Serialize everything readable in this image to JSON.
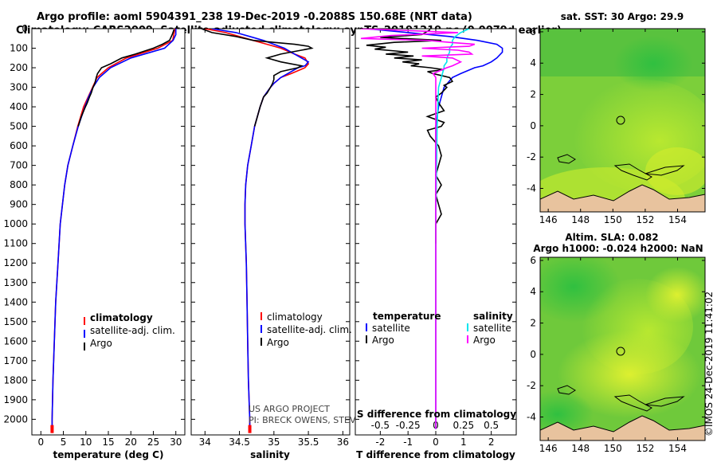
{
  "header": {
    "line1": "Argo profile: aoml 5904391_238 19-Dec-2019 -0.2088S 150.68E (NRT data)",
    "line2": "Climatology: CARS2009. Satellite-adjusted climatology: synTS_20191219.nc (0.0079d earlier)"
  },
  "colors": {
    "climatology": "#ff0000",
    "satellite": "#0000ff",
    "argo": "#000000",
    "salinity_satellite": "#00e5ee",
    "salinity_argo": "#ff00ff"
  },
  "depth_ticks": [
    "0",
    "100",
    "200",
    "300",
    "400",
    "500",
    "600",
    "700",
    "800",
    "900",
    "1000",
    "1100",
    "1200",
    "1300",
    "1400",
    "1500",
    "1600",
    "1700",
    "1800",
    "1900",
    "2000"
  ],
  "chart_data": [
    {
      "type": "line",
      "title": "",
      "xlabel": "temperature (deg C)",
      "ylabel": "",
      "xlim": [
        -2,
        32
      ],
      "ylim": [
        2080,
        0
      ],
      "xticks": [
        "0",
        "5",
        "10",
        "15",
        "20",
        "25",
        "30"
      ],
      "xtick_values": [
        0,
        5,
        10,
        15,
        20,
        25,
        30
      ],
      "legend": {
        "position": "bottom-right",
        "entries": [
          "climatology",
          "satellite-adj. clim.",
          "Argo"
        ]
      },
      "series": [
        {
          "name": "climatology",
          "color": "#ff0000",
          "depth": [
            0,
            60,
            100,
            150,
            200,
            250,
            300,
            350,
            400,
            500,
            600,
            700,
            800,
            900,
            1000,
            1200,
            1400,
            1600,
            1800,
            2000,
            2050
          ],
          "values": [
            29.8,
            29.3,
            26,
            19,
            15,
            12.5,
            11.5,
            10.5,
            9.5,
            8.2,
            7.1,
            6,
            5.3,
            4.8,
            4.3,
            3.8,
            3.3,
            3,
            2.7,
            2.5,
            2.5
          ]
        },
        {
          "name": "satellite-adj. clim.",
          "color": "#0000ff",
          "depth": [
            0,
            30,
            60,
            100,
            150,
            200,
            250,
            300,
            350,
            400,
            500,
            600,
            700,
            800,
            900,
            1000,
            1200,
            1400,
            1600,
            1800,
            2000,
            2050
          ],
          "values": [
            30,
            30,
            29.4,
            27.5,
            20,
            15.5,
            13,
            11.6,
            10.6,
            9.8,
            8.3,
            7.1,
            6,
            5.3,
            4.8,
            4.3,
            3.8,
            3.3,
            3,
            2.7,
            2.5,
            2.5
          ]
        },
        {
          "name": "Argo",
          "color": "#000000",
          "depth": [
            5,
            30,
            60,
            80,
            100,
            130,
            150,
            180,
            200,
            230,
            250,
            280,
            300,
            330,
            350,
            380,
            400,
            450,
            500
          ],
          "values": [
            29.6,
            29.2,
            28.6,
            27,
            25,
            21,
            18,
            15.5,
            13.5,
            12.6,
            12.3,
            12,
            11.6,
            11.2,
            10.8,
            10.3,
            9.9,
            9,
            8.3
          ]
        }
      ]
    },
    {
      "type": "line",
      "title": "",
      "xlabel": "salinity",
      "ylabel": "",
      "xlim": [
        33.8,
        36.1
      ],
      "ylim": [
        2080,
        0
      ],
      "xticks": [
        "34",
        "34.5",
        "35",
        "35.5",
        "36"
      ],
      "xtick_values": [
        34,
        34.5,
        35,
        35.5,
        36
      ],
      "legend": {
        "position": "bottom-right",
        "entries": [
          "climatology",
          "satellite-adj. clim.",
          "Argo"
        ]
      },
      "annotations": [
        "US ARGO PROJECT",
        "PI: BRECK OWENS, STEVE JAYNE, P. ROBBINS"
      ],
      "series": [
        {
          "name": "climatology",
          "color": "#ff0000",
          "depth": [
            0,
            20,
            50,
            80,
            100,
            130,
            150,
            180,
            200,
            230,
            250,
            280,
            300,
            350,
            400,
            500,
            600,
            700,
            800,
            900,
            1000,
            1200,
            1400,
            1600,
            1800,
            2000,
            2050
          ],
          "values": [
            34,
            34.3,
            34.6,
            34.9,
            35.1,
            35.3,
            35.45,
            35.5,
            35.45,
            35.25,
            35.1,
            35,
            34.95,
            34.85,
            34.8,
            34.72,
            34.67,
            34.62,
            34.59,
            34.58,
            34.58,
            34.6,
            34.61,
            34.62,
            34.63,
            34.65,
            34.65
          ]
        },
        {
          "name": "satellite-adj. clim.",
          "color": "#0000ff",
          "depth": [
            0,
            20,
            40,
            60,
            80,
            100,
            130,
            150,
            170,
            190,
            200,
            230,
            250,
            280,
            300,
            350,
            400,
            500,
            600,
            700,
            800,
            900,
            1000,
            1200,
            1400,
            1600,
            1800,
            2000,
            2050
          ],
          "values": [
            34.1,
            34.45,
            34.65,
            34.85,
            35,
            35.15,
            35.3,
            35.4,
            35.5,
            35.45,
            35.35,
            35.2,
            35.1,
            35,
            34.95,
            34.85,
            34.8,
            34.72,
            34.67,
            34.62,
            34.59,
            34.58,
            34.58,
            34.6,
            34.61,
            34.62,
            34.63,
            34.65,
            34.65
          ]
        },
        {
          "name": "Argo",
          "color": "#000000",
          "depth": [
            0,
            20,
            40,
            60,
            70,
            80,
            90,
            100,
            110,
            120,
            130,
            150,
            170,
            190,
            200,
            220,
            240,
            260,
            280,
            300,
            330,
            350,
            400,
            450,
            500
          ],
          "values": [
            33.95,
            34.1,
            34.45,
            34.7,
            35,
            35.3,
            35.5,
            35.55,
            35.4,
            35.25,
            35.1,
            34.9,
            35.1,
            35.4,
            35.35,
            35.1,
            35,
            35,
            34.98,
            34.95,
            34.9,
            34.85,
            34.8,
            34.76,
            34.72
          ]
        }
      ]
    },
    {
      "type": "line",
      "title": "",
      "xlabel": "T difference from climatology",
      "xlabel_top": "S difference from climatology",
      "ylabel": "",
      "xlim": [
        -2.9,
        2.9
      ],
      "ylim": [
        2080,
        0
      ],
      "xticks": [
        "-2",
        "-1",
        "0",
        "1",
        "2"
      ],
      "xtick_values": [
        -2,
        -1,
        0,
        1,
        2
      ],
      "xticks_top": [
        "-0.5",
        "-0.25",
        "0",
        "0.25",
        "0.5"
      ],
      "xtick_top_values": [
        -0.5,
        -0.25,
        0,
        0.25,
        0.5
      ],
      "legend": {
        "position": "bottom",
        "temperature_heading": "temperature",
        "salinity_heading": "salinity",
        "entries": [
          "satellite",
          "Argo",
          "satellite",
          "Argo"
        ]
      },
      "series": [
        {
          "name": "T satellite",
          "color": "#0000ff",
          "depth": [
            0,
            20,
            40,
            60,
            80,
            100,
            120,
            150,
            170,
            190,
            200,
            230,
            250,
            300,
            400,
            500,
            700,
            1000,
            1500,
            2050
          ],
          "values": [
            -2.5,
            -1,
            0.5,
            1.5,
            2.2,
            2.4,
            2.4,
            2.2,
            2,
            1.7,
            1.4,
            0.9,
            0.6,
            0.3,
            0.1,
            0,
            0,
            0,
            0,
            0
          ]
        },
        {
          "name": "T Argo",
          "color": "#000000",
          "depth": [
            5,
            30,
            45,
            60,
            70,
            85,
            95,
            105,
            120,
            130,
            140,
            150,
            160,
            170,
            180,
            190,
            200,
            210,
            220,
            230,
            240,
            250,
            270,
            290,
            300,
            330,
            350,
            380,
            400,
            420,
            450,
            480,
            500,
            520,
            550,
            600,
            650,
            700,
            750,
            800,
            850,
            900,
            950,
            1000,
            1100
          ],
          "values": [
            -0.2,
            -0.5,
            -2,
            0.2,
            -1.5,
            -2.5,
            -1.8,
            -2.2,
            -1,
            -1.8,
            -0.8,
            -1.5,
            -0.5,
            -1.2,
            -0.6,
            -0.9,
            -0.2,
            0.3,
            -0.3,
            -0.1,
            0.2,
            0.5,
            0.6,
            0.3,
            0.4,
            0.2,
            0,
            0.1,
            0.2,
            0.3,
            -0.3,
            0.3,
            0.2,
            -0.3,
            -0.2,
            0.1,
            0.2,
            0.1,
            0,
            0.2,
            0,
            0.1,
            0.2,
            0,
            0
          ]
        },
        {
          "name": "S satellite",
          "color": "#00e5ee",
          "depth": [
            0,
            20,
            40,
            60,
            80,
            100,
            120,
            150,
            170,
            190,
            200,
            250,
            300,
            500,
            1000,
            1500,
            2050
          ],
          "values": [
            1.2,
            0.9,
            0.7,
            0.6,
            0.6,
            0.5,
            0.5,
            0.4,
            0.4,
            0.3,
            0.3,
            0.2,
            0.1,
            0.05,
            0,
            0,
            0
          ]
        },
        {
          "name": "S Argo",
          "color": "#ff00ff",
          "depth": [
            0,
            20,
            35,
            50,
            60,
            70,
            80,
            90,
            100,
            110,
            120,
            130,
            140,
            150,
            170,
            190,
            200,
            230,
            250,
            300,
            400,
            500,
            1000,
            1500,
            2050
          ],
          "values": [
            -2.7,
            0.8,
            -1.6,
            -2.7,
            -0.3,
            0.5,
            1.4,
            1.2,
            -0.5,
            0.8,
            1.2,
            1.3,
            -0.5,
            0.6,
            0.9,
            0.6,
            0.4,
            -0.1,
            0,
            0,
            0,
            0,
            0,
            0,
            0
          ]
        }
      ]
    },
    {
      "type": "heatmap",
      "title": "sat. SST: 30 Argo: 29.9",
      "xlim": [
        145.5,
        155.7
      ],
      "ylim": [
        -5.5,
        6.2
      ],
      "xticks": [
        "146",
        "148",
        "150",
        "152",
        "154"
      ],
      "xtick_values": [
        146,
        148,
        150,
        152,
        154
      ],
      "yticks": [
        "6",
        "4",
        "2",
        "0",
        "-2",
        "-4"
      ],
      "ytick_values": [
        6,
        4,
        2,
        0,
        -2,
        -4
      ],
      "profile_location": {
        "lon": 150.68,
        "lat": -0.2088
      }
    },
    {
      "type": "heatmap",
      "title": "Altim. SLA: 0.082",
      "subtitle": "Argo h1000: -0.024 h2000: NaN",
      "xlim": [
        145.5,
        155.7
      ],
      "ylim": [
        -5.5,
        6.2
      ],
      "xticks": [
        "146",
        "148",
        "150",
        "152",
        "154"
      ],
      "xtick_values": [
        146,
        148,
        150,
        152,
        154
      ],
      "yticks": [
        "6",
        "4",
        "2",
        "0",
        "-2",
        "-4"
      ],
      "ytick_values": [
        6,
        4,
        2,
        0,
        -2,
        -4
      ],
      "profile_location": {
        "lon": 150.68,
        "lat": -0.2088
      }
    }
  ],
  "footer": {
    "imos_stamp": "©IMOS 24-Dec-2019 11:41:02"
  }
}
